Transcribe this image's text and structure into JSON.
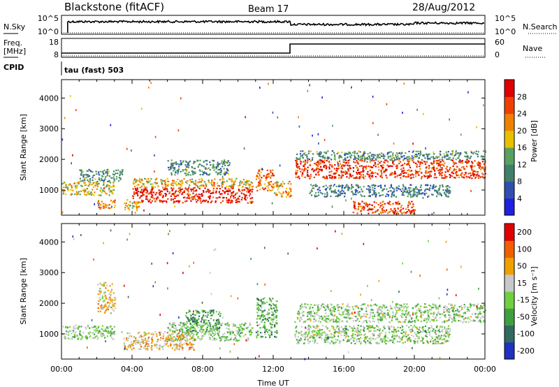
{
  "header": {
    "station": "Blackstone (fitACF)",
    "beam": "Beam 17",
    "date": "28/Aug/2012"
  },
  "top_panels": {
    "nsky_label": "N.Sky",
    "nsky_ticks": [
      "10^5",
      "10^0"
    ],
    "nsearch_label": "N.Search",
    "nsearch_ticks": [
      "10^5",
      "10^0"
    ],
    "freq_label": "Freq.",
    "freq_unit": "[MHz]",
    "freq_ticks": [
      "18",
      "8"
    ],
    "nave_label": "Nave",
    "nave_ticks": [
      "60",
      "0"
    ],
    "cpid_label": "CPID",
    "cpid_value": "tau (fast) 503"
  },
  "chart_data": [
    {
      "type": "heatmap",
      "name": "power",
      "ylabel": "Slant Range [km]",
      "yticks": [
        "4000",
        "3000",
        "2000",
        "1000"
      ],
      "ylim": [
        180,
        4600
      ],
      "colorbar_label": "Power [dB]",
      "colorbar_ticks": [
        "28",
        "24",
        "20",
        "16",
        "12",
        "8",
        "4"
      ],
      "colors": [
        "#2020e0",
        "#3050b0",
        "#40806a",
        "#5aa060",
        "#e8c000",
        "#f08000",
        "#f04000",
        "#e00000"
      ],
      "bands": [
        {
          "t0": 0.0,
          "t1": 3.0,
          "r0": 850,
          "r1": 1300,
          "level": 0.55
        },
        {
          "t0": 1.0,
          "t1": 3.5,
          "r0": 1300,
          "r1": 1700,
          "level": 0.35
        },
        {
          "t0": 2.0,
          "t1": 3.0,
          "r0": 400,
          "r1": 700,
          "level": 0.7
        },
        {
          "t0": 3.5,
          "t1": 4.5,
          "r0": 350,
          "r1": 700,
          "level": 0.55
        },
        {
          "t0": 4.0,
          "t1": 10.8,
          "r0": 600,
          "r1": 1100,
          "level": 0.9
        },
        {
          "t0": 4.0,
          "t1": 10.8,
          "r0": 1100,
          "r1": 1400,
          "level": 0.6
        },
        {
          "t0": 6.0,
          "t1": 9.5,
          "r0": 1500,
          "r1": 2000,
          "level": 0.35
        },
        {
          "t0": 11.0,
          "t1": 12.0,
          "r0": 1000,
          "r1": 1700,
          "level": 0.75
        },
        {
          "t0": 12.0,
          "t1": 13.0,
          "r0": 800,
          "r1": 1300,
          "level": 0.65
        },
        {
          "t0": 13.2,
          "t1": 24.0,
          "r0": 1400,
          "r1": 2000,
          "level": 0.85
        },
        {
          "t0": 13.2,
          "t1": 24.0,
          "r0": 2000,
          "r1": 2300,
          "level": 0.35
        },
        {
          "t0": 14.0,
          "t1": 22.0,
          "r0": 800,
          "r1": 1200,
          "level": 0.3
        },
        {
          "t0": 16.5,
          "t1": 20.0,
          "r0": 250,
          "r1": 650,
          "level": 0.8
        }
      ]
    },
    {
      "type": "heatmap",
      "name": "velocity",
      "ylabel": "Slant Range [km]",
      "yticks": [
        "4000",
        "3000",
        "2000",
        "1000"
      ],
      "ylim": [
        180,
        4600
      ],
      "colorbar_label": "Velocity [m s⁻¹]",
      "colorbar_ticks": [
        "200",
        "100",
        "50",
        "15",
        "-15",
        "-50",
        "-100",
        "-200"
      ],
      "colors": [
        "#2030c0",
        "#306a60",
        "#40a040",
        "#70d040",
        "#c8c8c8",
        "#f0a000",
        "#f06000",
        "#e00000"
      ],
      "bands": [
        {
          "t0": 0.0,
          "t1": 3.0,
          "r0": 850,
          "r1": 1300,
          "level": 0.45
        },
        {
          "t0": 2.0,
          "t1": 3.0,
          "r0": 1700,
          "r1": 2700,
          "level": 0.62
        },
        {
          "t0": 3.5,
          "t1": 7.5,
          "r0": 500,
          "r1": 1100,
          "level": 0.65
        },
        {
          "t0": 6.0,
          "t1": 10.8,
          "r0": 800,
          "r1": 1400,
          "level": 0.45
        },
        {
          "t0": 7.0,
          "t1": 9.0,
          "r0": 1100,
          "r1": 1800,
          "level": 0.3
        },
        {
          "t0": 11.0,
          "t1": 12.2,
          "r0": 900,
          "r1": 2200,
          "level": 0.35
        },
        {
          "t0": 13.2,
          "t1": 24.0,
          "r0": 1400,
          "r1": 2000,
          "level": 0.47
        },
        {
          "t0": 13.2,
          "t1": 22.0,
          "r0": 700,
          "r1": 1300,
          "level": 0.47
        }
      ]
    }
  ],
  "xaxis": {
    "label": "Time UT",
    "ticks": [
      "00:00",
      "04:00",
      "08:00",
      "12:00",
      "16:00",
      "20:00",
      "00:00"
    ],
    "xlim": [
      0,
      24
    ]
  }
}
